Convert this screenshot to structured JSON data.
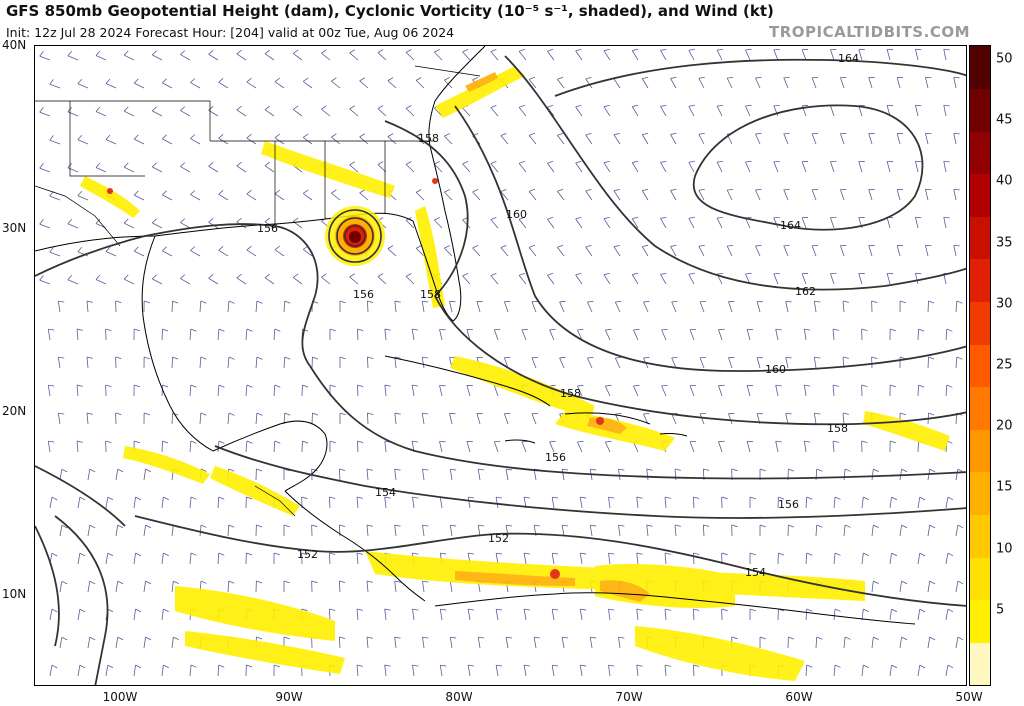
{
  "header": {
    "title": "GFS 850mb Geopotential Height (dam), Cyclonic Vorticity (10⁻⁵ s⁻¹, shaded), and Wind (kt)",
    "subtitle": "Init: 12z Jul 28 2024   Forecast Hour: [204]   valid at 00z Tue, Aug 06 2024",
    "brand": "TROPICALTIDBITS.COM"
  },
  "axes": {
    "lat_labels": [
      "40N",
      "30N",
      "20N",
      "10N"
    ],
    "lon_labels": [
      "100W",
      "90W",
      "80W",
      "70W",
      "60W",
      "50W"
    ]
  },
  "colorbar": {
    "labels": [
      "50",
      "45",
      "40",
      "35",
      "30",
      "25",
      "20",
      "15",
      "10",
      "5"
    ],
    "colors": [
      "#fff8c0",
      "#fff000",
      "#ffe000",
      "#ffc800",
      "#ffb000",
      "#ff9800",
      "#ff7800",
      "#ff5a00",
      "#f03c00",
      "#e02000",
      "#c81000",
      "#b00000",
      "#900000",
      "#700000",
      "#500000"
    ]
  },
  "contour_labels": {
    "164_a": "164",
    "164_b": "164",
    "162": "162",
    "160_a": "160",
    "160_b": "160",
    "158_a": "158",
    "158_b": "158",
    "158_c": "158",
    "158_d": "158",
    "156_a": "156",
    "156_b": "156",
    "156_c": "156",
    "156_d": "156",
    "154_a": "154",
    "154_b": "154",
    "152_a": "152",
    "152_b": "152"
  },
  "colors": {
    "contour": "#333333",
    "coast": "#000000",
    "barb": "#5a5a9a",
    "vorticity_low": "#fff000",
    "vorticity_mid": "#ffb000",
    "vorticity_high": "#e02000",
    "vorticity_core": "#700000"
  }
}
